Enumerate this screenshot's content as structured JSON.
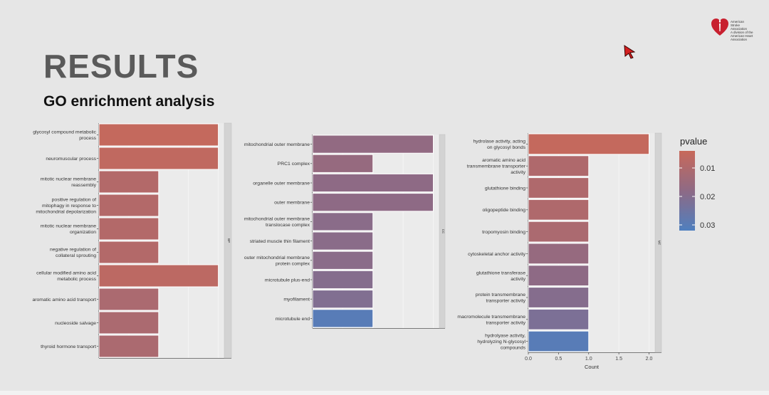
{
  "slide": {
    "title": "RESULTS",
    "subtitle": "GO enrichment analysis",
    "logo_text": "American\nStroke\nAssociation\nA division of the\nAmerican Heart Association"
  },
  "colors": {
    "low_p": "#c8695a",
    "mid_p": "#8e6a85",
    "high_p": "#4f7fbf"
  },
  "chart_data": [
    {
      "type": "bar",
      "orientation": "horizontal",
      "facet_label": "BP",
      "categories": [
        "glycosyl compound metabolic process",
        "neuromuscular process",
        "mitotic nuclear membrane reassembly",
        "positive regulation of mitophagy in response to mitochondrial depolarization",
        "mitotic nuclear membrane organization",
        "negative regulation of collateral sprouting",
        "cellular modified amino acid metabolic process",
        "aromatic amino acid transport",
        "nucleoside salvage",
        "thyroid hormone transport"
      ],
      "labels": [
        [
          "glycosyl compound metabolic",
          "process"
        ],
        [
          "neuromuscular process"
        ],
        [
          "mitotic nuclear membrane",
          "reassembly"
        ],
        [
          "positive regulation of",
          "mitophagy in response to",
          "mitochondrial depolarization"
        ],
        [
          "mitotic nuclear membrane",
          "organization"
        ],
        [
          "negative regulation of",
          "collateral sprouting"
        ],
        [
          "cellular modified amino acid",
          "metabolic process"
        ],
        [
          "aromatic amino acid transport"
        ],
        [
          "nucleoside salvage"
        ],
        [
          "thyroid hormone transport"
        ]
      ],
      "values": [
        2,
        2,
        1,
        1,
        1,
        1,
        2,
        1,
        1,
        1
      ],
      "pvalue": [
        0.005,
        0.006,
        0.009,
        0.009,
        0.009,
        0.009,
        0.007,
        0.011,
        0.011,
        0.011
      ],
      "xlim": [
        0,
        2.1
      ]
    },
    {
      "type": "bar",
      "orientation": "horizontal",
      "facet_label": "CC",
      "categories": [
        "mitochondrial outer membrane",
        "PRC1 complex",
        "organelle outer membrane",
        "outer membrane",
        "mitochondrial outer membrane translocase complex",
        "striated muscle thin filament",
        "outer mitochondrial membrane protein complex",
        "microtubule plus-end",
        "myofilament",
        "microtubule end"
      ],
      "labels": [
        [
          "mitochondrial outer membrane"
        ],
        [
          "PRC1 complex"
        ],
        [
          "organelle outer membrane"
        ],
        [
          "outer membrane"
        ],
        [
          "mitochondrial outer membrane",
          "translocase complex"
        ],
        [
          "striated muscle thin filament"
        ],
        [
          "outer mitochondrial membrane",
          "protein complex"
        ],
        [
          "microtubule plus-end"
        ],
        [
          "myofilament"
        ],
        [
          "microtubule end"
        ]
      ],
      "values": [
        2,
        1,
        2,
        2,
        1,
        1,
        1,
        1,
        1,
        1
      ],
      "pvalue": [
        0.017,
        0.016,
        0.018,
        0.018,
        0.019,
        0.019,
        0.019,
        0.02,
        0.021,
        0.03
      ],
      "xlim": [
        0,
        2.1
      ]
    },
    {
      "type": "bar",
      "orientation": "horizontal",
      "facet_label": "MF",
      "categories": [
        "hydrolase activity, acting on glycosyl bonds",
        "aromatic amino acid transmembrane transporter activity",
        "glutathione binding",
        "oligopeptide binding",
        "tropomyosin binding",
        "cytoskeletal anchor activity",
        "glutathione transferase activity",
        "protein transmembrane transporter activity",
        "macromolecule transmembrane transporter activity",
        "hydrolase activity, hydrolyzing N-glycosyl compounds"
      ],
      "labels": [
        [
          "hydrolase activity, acting",
          "on glycosyl bonds"
        ],
        [
          "aromatic amino acid",
          "transmembrane transporter",
          "activity"
        ],
        [
          "glutathione binding"
        ],
        [
          "oligopeptide binding"
        ],
        [
          "tropomyosin binding"
        ],
        [
          "cytoskeletal anchor activity"
        ],
        [
          "glutathione transferase",
          "activity"
        ],
        [
          "protein transmembrane",
          "transporter activity"
        ],
        [
          "macromolecule transmembrane",
          "transporter activity"
        ],
        [
          "hydrolyase activity,",
          "hydrolyzing N-glycosyl",
          "compounds"
        ]
      ],
      "values": [
        2,
        1,
        1,
        1,
        1,
        1,
        1,
        1,
        1,
        1
      ],
      "pvalue": [
        0.005,
        0.01,
        0.01,
        0.01,
        0.011,
        0.016,
        0.018,
        0.02,
        0.022,
        0.03
      ],
      "xlim": [
        0,
        2.1
      ],
      "xticks": [
        "0.0",
        "0.5",
        "1.0",
        "1.5",
        "2.0"
      ],
      "xlabel": "Count"
    }
  ],
  "legend": {
    "title": "pvalue",
    "ticks": [
      "0.01",
      "0.02",
      "0.03"
    ],
    "tick_values": [
      0.01,
      0.02,
      0.03
    ],
    "range": [
      0.004,
      0.032
    ]
  }
}
